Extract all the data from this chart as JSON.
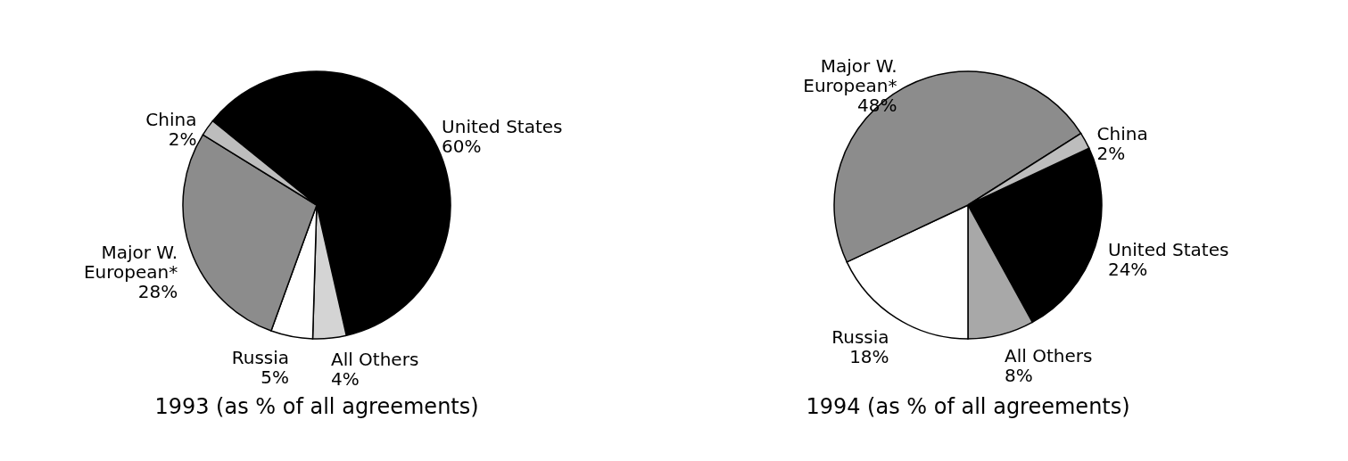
{
  "chart_data": [
    {
      "type": "pie",
      "title": "1993 (as % of all agreements)",
      "categories": [
        "United States",
        "All Others",
        "Russia",
        "Major W.\nEuropean*",
        "China"
      ],
      "values": [
        60,
        4,
        5,
        28,
        2
      ],
      "value_labels": [
        "60%",
        "4%",
        "5%",
        "28%",
        "2%"
      ],
      "colors": [
        "#000000",
        "#d4d4d4",
        "#ffffff",
        "#8c8c8c",
        "#bdbdbd"
      ],
      "legend": false
    },
    {
      "type": "pie",
      "title": "1994 (as % of all agreements)",
      "categories": [
        "United States",
        "All Others",
        "Russia",
        "Major W.\nEuropean*",
        "China"
      ],
      "values": [
        24,
        8,
        18,
        48,
        2
      ],
      "value_labels": [
        "24%",
        "8%",
        "18%",
        "48%",
        "2%"
      ],
      "colors": [
        "#000000",
        "#a8a8a8",
        "#ffffff",
        "#8c8c8c",
        "#bdbdbd"
      ],
      "legend": false
    }
  ]
}
